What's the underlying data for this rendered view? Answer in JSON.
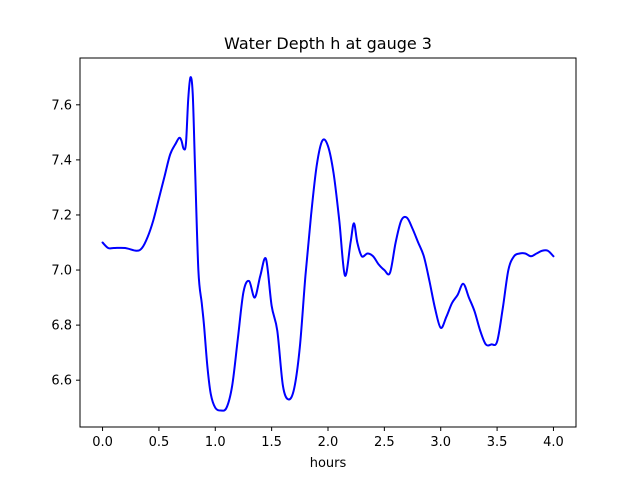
{
  "chart_data": {
    "type": "line",
    "title": "Water Depth h at gauge 3",
    "xlabel": "hours",
    "ylabel": "",
    "xlim": [
      -0.2,
      4.2
    ],
    "ylim": [
      6.43,
      7.77
    ],
    "xticks": [
      0.0,
      0.5,
      1.0,
      1.5,
      2.0,
      2.5,
      3.0,
      3.5,
      4.0
    ],
    "xtick_labels": [
      "0.0",
      "0.5",
      "1.0",
      "1.5",
      "2.0",
      "2.5",
      "3.0",
      "3.5",
      "4.0"
    ],
    "yticks": [
      6.6,
      6.8,
      7.0,
      7.2,
      7.4,
      7.6
    ],
    "ytick_labels": [
      "6.6",
      "6.8",
      "7.0",
      "7.2",
      "7.4",
      "7.6"
    ],
    "grid": false,
    "series": [
      {
        "color": "#0000ff",
        "x": [
          0.0,
          0.05,
          0.1,
          0.2,
          0.3,
          0.35,
          0.4,
          0.45,
          0.5,
          0.55,
          0.6,
          0.65,
          0.68,
          0.7,
          0.72,
          0.74,
          0.76,
          0.78,
          0.8,
          0.82,
          0.85,
          0.88,
          0.9,
          0.93,
          0.96,
          1.0,
          1.05,
          1.1,
          1.15,
          1.2,
          1.25,
          1.3,
          1.35,
          1.4,
          1.45,
          1.5,
          1.55,
          1.6,
          1.65,
          1.7,
          1.75,
          1.8,
          1.85,
          1.9,
          1.95,
          2.0,
          2.05,
          2.1,
          2.15,
          2.2,
          2.23,
          2.26,
          2.3,
          2.35,
          2.4,
          2.45,
          2.5,
          2.55,
          2.6,
          2.65,
          2.7,
          2.75,
          2.8,
          2.85,
          2.9,
          2.95,
          3.0,
          3.05,
          3.1,
          3.15,
          3.2,
          3.25,
          3.3,
          3.35,
          3.4,
          3.45,
          3.5,
          3.55,
          3.6,
          3.65,
          3.7,
          3.75,
          3.8,
          3.85,
          3.9,
          3.95,
          4.0
        ],
        "y": [
          7.1,
          7.08,
          7.08,
          7.08,
          7.07,
          7.08,
          7.12,
          7.18,
          7.26,
          7.34,
          7.42,
          7.46,
          7.48,
          7.47,
          7.44,
          7.46,
          7.62,
          7.7,
          7.64,
          7.38,
          7.0,
          6.88,
          6.8,
          6.65,
          6.55,
          6.5,
          6.49,
          6.5,
          6.58,
          6.75,
          6.92,
          6.96,
          6.9,
          6.98,
          7.04,
          6.87,
          6.78,
          6.58,
          6.53,
          6.57,
          6.72,
          6.98,
          7.2,
          7.38,
          7.47,
          7.45,
          7.35,
          7.18,
          6.98,
          7.1,
          7.17,
          7.1,
          7.05,
          7.06,
          7.05,
          7.02,
          7.0,
          6.99,
          7.1,
          7.18,
          7.19,
          7.15,
          7.1,
          7.05,
          6.96,
          6.86,
          6.79,
          6.83,
          6.88,
          6.91,
          6.95,
          6.9,
          6.85,
          6.78,
          6.73,
          6.73,
          6.74,
          6.86,
          7.0,
          7.05,
          7.06,
          7.06,
          7.05,
          7.06,
          7.07,
          7.07,
          7.05
        ]
      }
    ]
  }
}
